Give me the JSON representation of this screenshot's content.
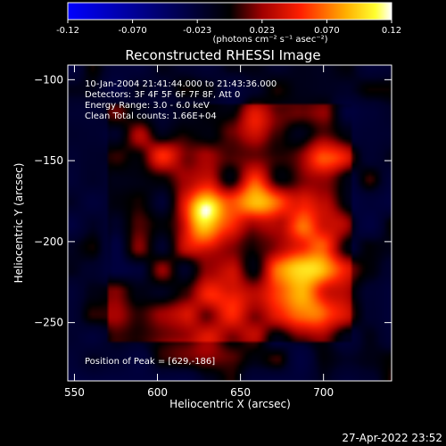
{
  "colorbar": {
    "ticks": [
      "-0.12",
      "-0.070",
      "-0.023",
      "0.023",
      "0.070",
      "0.12"
    ],
    "units_text": "(photons cm⁻² s⁻¹ asec⁻²)",
    "colors": [
      "#0000ff",
      "#000000",
      "#ff0000",
      "#ffff00",
      "#ffffff"
    ]
  },
  "title": "Reconstructed RHESSI Image",
  "info_lines": [
    "10-Jan-2004 21:41:44.000 to 21:43:36.000",
    "Detectors: 3F 4F 5F 6F 7F 8F, Att 0",
    "Energy Range: 3.0 - 6.0 keV",
    "Clean     Total counts: 1.66E+04"
  ],
  "peak_text": "Position of Peak = [629,-186]",
  "footer_date": "27-Apr-2022 23:52",
  "chart_data": {
    "type": "heatmap",
    "title": "Reconstructed RHESSI Image",
    "xlabel": "Heliocentric X (arcsec)",
    "ylabel": "Heliocentric Y (arcsec)",
    "xlim": [
      546,
      741
    ],
    "ylim": [
      -286,
      -91
    ],
    "x_ticks": [
      550,
      600,
      650,
      700
    ],
    "y_ticks": [
      -100,
      -150,
      -200,
      -250
    ],
    "x_tick_labels": [
      "550",
      "600",
      "650",
      "700"
    ],
    "y_tick_labels": [
      "−100",
      "−150",
      "−200",
      "−250"
    ],
    "value_range": [
      -0.12,
      0.12
    ],
    "peak_position": [
      629,
      -186
    ],
    "peak_value": 0.12,
    "sources": [
      {
        "x": 629,
        "y": -186,
        "amp": 0.12,
        "sx": 8,
        "sy": 12
      },
      {
        "x": 660,
        "y": -175,
        "amp": 0.07,
        "sx": 12,
        "sy": 14
      },
      {
        "x": 688,
        "y": -215,
        "amp": 0.075,
        "sx": 16,
        "sy": 16
      },
      {
        "x": 690,
        "y": -245,
        "amp": 0.055,
        "sx": 14,
        "sy": 12
      },
      {
        "x": 645,
        "y": -240,
        "amp": 0.05,
        "sx": 20,
        "sy": 14
      },
      {
        "x": 700,
        "y": -150,
        "amp": 0.055,
        "sx": 10,
        "sy": 12
      },
      {
        "x": 605,
        "y": -145,
        "amp": 0.035,
        "sx": 14,
        "sy": 10
      },
      {
        "x": 660,
        "y": -125,
        "amp": 0.025,
        "sx": 14,
        "sy": 8
      },
      {
        "x": 620,
        "y": -265,
        "amp": 0.025,
        "sx": 20,
        "sy": 8
      },
      {
        "x": 700,
        "y": -185,
        "amp": 0.05,
        "sx": 12,
        "sy": 14
      }
    ]
  }
}
